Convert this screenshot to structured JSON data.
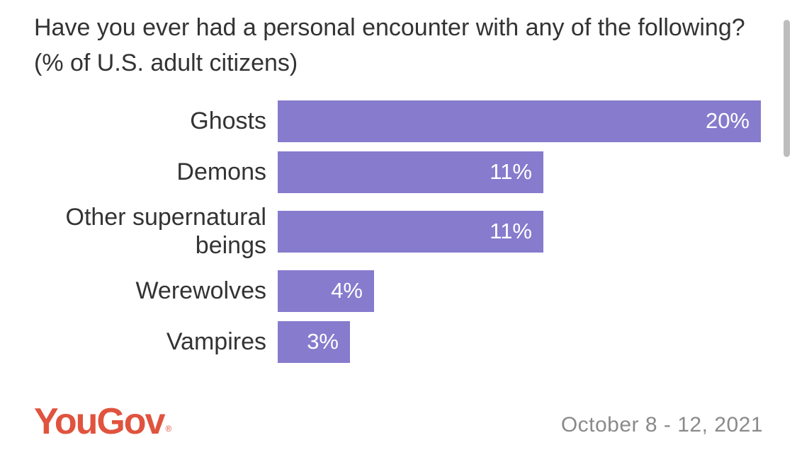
{
  "title": "Have you ever had a personal encounter with any of the following? (% of U.S. adult citizens)",
  "source": {
    "brand": "YouGov",
    "trademark": "®",
    "date": "October 8 - 12, 2021"
  },
  "colors": {
    "bar": "#867bcd",
    "brand": "#e0533e",
    "text": "#333333",
    "date": "#8a8a8a"
  },
  "chart_data": {
    "type": "bar",
    "orientation": "horizontal",
    "categories": [
      "Ghosts",
      "Demons",
      "Other supernatural beings",
      "Werewolves",
      "Vampires"
    ],
    "values": [
      20,
      11,
      11,
      4,
      3
    ],
    "value_labels": [
      "20%",
      "11%",
      "11%",
      "4%",
      "3%"
    ],
    "unit": "%",
    "xlim": [
      0,
      20
    ],
    "grid": false,
    "legend": "none"
  }
}
